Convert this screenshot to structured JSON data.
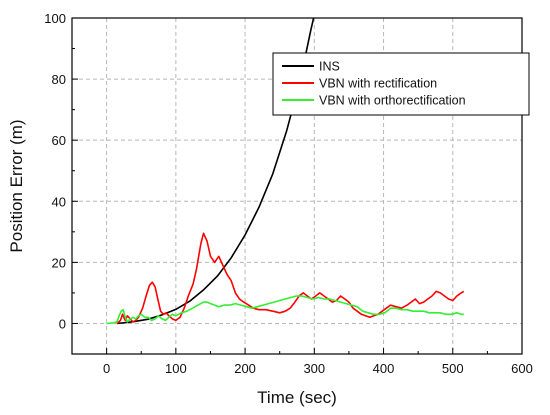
{
  "chart_data": {
    "type": "line",
    "title": "",
    "xlabel": "Time (sec)",
    "ylabel": "Position Error (m)",
    "xlim": [
      -50,
      600
    ],
    "ylim": [
      -10,
      100
    ],
    "x_ticks": [
      0,
      100,
      200,
      300,
      400,
      500,
      600
    ],
    "y_ticks": [
      0,
      20,
      40,
      60,
      80,
      100
    ],
    "grid": "dashed",
    "legend_position": "top-right",
    "series": [
      {
        "name": "INS",
        "color": "#000000",
        "points": [
          [
            15,
            0
          ],
          [
            40,
            0.6
          ],
          [
            60,
            1.4
          ],
          [
            80,
            2.8
          ],
          [
            100,
            4.6
          ],
          [
            120,
            7.3
          ],
          [
            140,
            11
          ],
          [
            160,
            15.5
          ],
          [
            180,
            21.5
          ],
          [
            200,
            29
          ],
          [
            220,
            38
          ],
          [
            240,
            49
          ],
          [
            260,
            63
          ],
          [
            280,
            80
          ],
          [
            295,
            96
          ],
          [
            300,
            101
          ]
        ]
      },
      {
        "name": "VBN with rectification",
        "color": "#ff0000",
        "points": [
          [
            15,
            0
          ],
          [
            20,
            1
          ],
          [
            23,
            3
          ],
          [
            27,
            1
          ],
          [
            30,
            2.5
          ],
          [
            34,
            1.5
          ],
          [
            38,
            0.5
          ],
          [
            42,
            1
          ],
          [
            46,
            2
          ],
          [
            52,
            5
          ],
          [
            57,
            9
          ],
          [
            62,
            12.5
          ],
          [
            66,
            13.5
          ],
          [
            70,
            12
          ],
          [
            74,
            8
          ],
          [
            78,
            4
          ],
          [
            82,
            3
          ],
          [
            86,
            3.5
          ],
          [
            90,
            2.5
          ],
          [
            95,
            1.5
          ],
          [
            100,
            1
          ],
          [
            106,
            2
          ],
          [
            112,
            5
          ],
          [
            118,
            9
          ],
          [
            125,
            13
          ],
          [
            130,
            18
          ],
          [
            136,
            26
          ],
          [
            140,
            29.5
          ],
          [
            145,
            27
          ],
          [
            150,
            22
          ],
          [
            156,
            20
          ],
          [
            162,
            22
          ],
          [
            168,
            19
          ],
          [
            174,
            16
          ],
          [
            180,
            14
          ],
          [
            186,
            10
          ],
          [
            192,
            8
          ],
          [
            198,
            7
          ],
          [
            205,
            6
          ],
          [
            212,
            5
          ],
          [
            220,
            4.5
          ],
          [
            230,
            4.5
          ],
          [
            240,
            4
          ],
          [
            250,
            3.5
          ],
          [
            258,
            4
          ],
          [
            265,
            5
          ],
          [
            272,
            7
          ],
          [
            278,
            9
          ],
          [
            284,
            10
          ],
          [
            290,
            9
          ],
          [
            296,
            8
          ],
          [
            302,
            9
          ],
          [
            308,
            10
          ],
          [
            314,
            9
          ],
          [
            320,
            8
          ],
          [
            326,
            7
          ],
          [
            332,
            7.5
          ],
          [
            338,
            9
          ],
          [
            344,
            8
          ],
          [
            350,
            7
          ],
          [
            356,
            5
          ],
          [
            362,
            4
          ],
          [
            368,
            3
          ],
          [
            374,
            2.5
          ],
          [
            380,
            2
          ],
          [
            386,
            2.5
          ],
          [
            392,
            3
          ],
          [
            398,
            4
          ],
          [
            404,
            5
          ],
          [
            410,
            6
          ],
          [
            418,
            5.5
          ],
          [
            426,
            5
          ],
          [
            434,
            6
          ],
          [
            440,
            7
          ],
          [
            446,
            8
          ],
          [
            452,
            6.5
          ],
          [
            458,
            7
          ],
          [
            464,
            8
          ],
          [
            470,
            9
          ],
          [
            476,
            10.5
          ],
          [
            482,
            10
          ],
          [
            488,
            9
          ],
          [
            494,
            8
          ],
          [
            500,
            7.5
          ],
          [
            506,
            9
          ],
          [
            512,
            10
          ],
          [
            516,
            10.5
          ]
        ]
      },
      {
        "name": "VBN with orthorectification",
        "color": "#33ee33",
        "points": [
          [
            0,
            0
          ],
          [
            10,
            0.2
          ],
          [
            15,
            0.5
          ],
          [
            18,
            2.5
          ],
          [
            21,
            4
          ],
          [
            24,
            4.5
          ],
          [
            27,
            2
          ],
          [
            30,
            0.5
          ],
          [
            34,
            1.5
          ],
          [
            38,
            2
          ],
          [
            42,
            1.5
          ],
          [
            46,
            2.5
          ],
          [
            50,
            3
          ],
          [
            55,
            2
          ],
          [
            60,
            2
          ],
          [
            65,
            1
          ],
          [
            70,
            1.5
          ],
          [
            75,
            2.5
          ],
          [
            80,
            1.5
          ],
          [
            85,
            1
          ],
          [
            90,
            2
          ],
          [
            95,
            3
          ],
          [
            100,
            2.5
          ],
          [
            108,
            3.5
          ],
          [
            116,
            4
          ],
          [
            124,
            5
          ],
          [
            132,
            6
          ],
          [
            140,
            7
          ],
          [
            145,
            7
          ],
          [
            150,
            6.5
          ],
          [
            156,
            6
          ],
          [
            162,
            5.5
          ],
          [
            170,
            6
          ],
          [
            178,
            6
          ],
          [
            186,
            6.5
          ],
          [
            194,
            6
          ],
          [
            202,
            5.5
          ],
          [
            210,
            5
          ],
          [
            218,
            5.5
          ],
          [
            226,
            6
          ],
          [
            234,
            6.5
          ],
          [
            242,
            7
          ],
          [
            250,
            7.5
          ],
          [
            258,
            8
          ],
          [
            266,
            8.5
          ],
          [
            274,
            9
          ],
          [
            282,
            9
          ],
          [
            290,
            8.5
          ],
          [
            298,
            8
          ],
          [
            306,
            8.5
          ],
          [
            314,
            8
          ],
          [
            322,
            8
          ],
          [
            330,
            7.5
          ],
          [
            338,
            7
          ],
          [
            346,
            6.5
          ],
          [
            354,
            6
          ],
          [
            362,
            5.5
          ],
          [
            370,
            4
          ],
          [
            378,
            3.5
          ],
          [
            386,
            3
          ],
          [
            394,
            3
          ],
          [
            402,
            3.5
          ],
          [
            410,
            5
          ],
          [
            418,
            5
          ],
          [
            426,
            4.5
          ],
          [
            434,
            4.5
          ],
          [
            442,
            4
          ],
          [
            450,
            4
          ],
          [
            458,
            4
          ],
          [
            466,
            3.5
          ],
          [
            474,
            3.5
          ],
          [
            482,
            3.5
          ],
          [
            490,
            3
          ],
          [
            498,
            3
          ],
          [
            506,
            3.5
          ],
          [
            512,
            3
          ],
          [
            516,
            3
          ]
        ]
      }
    ]
  }
}
